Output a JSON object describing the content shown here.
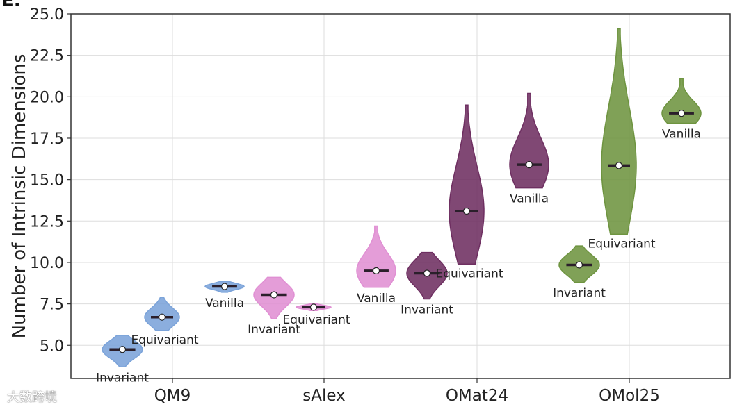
{
  "panel_label": "E.",
  "watermark": "大数跨境",
  "chart_data": {
    "type": "violin",
    "title": "",
    "xlabel": "",
    "ylabel": "Number of Intrinsic Dimensions",
    "ylim": [
      3.0,
      25.0
    ],
    "yticks": [
      "5.0",
      "7.5",
      "10.0",
      "12.5",
      "15.0",
      "17.5",
      "20.0",
      "22.5",
      "25.0"
    ],
    "grid": true,
    "categories": [
      "QM9",
      "sAlex",
      "OMat24",
      "OMol25"
    ],
    "series_colors": {
      "QM9": "#7ba3d9",
      "sAlex": "#e08fd3",
      "OMat24": "#6e2f61",
      "OMol25": "#6e9440"
    },
    "groups": [
      {
        "dataset": "QM9",
        "model": "Invariant",
        "min": 3.7,
        "max": 5.6,
        "median": 4.75
      },
      {
        "dataset": "QM9",
        "model": "Equivariant",
        "min": 5.9,
        "max": 7.9,
        "median": 6.7
      },
      {
        "dataset": "QM9",
        "model": "Vanilla",
        "min": 8.2,
        "max": 8.85,
        "median": 8.55
      },
      {
        "dataset": "sAlex",
        "model": "Invariant",
        "min": 6.6,
        "max": 9.1,
        "median": 8.05
      },
      {
        "dataset": "sAlex",
        "model": "Equivariant",
        "min": 7.1,
        "max": 7.5,
        "median": 7.3
      },
      {
        "dataset": "sAlex",
        "model": "Vanilla",
        "min": 8.5,
        "max": 12.2,
        "median": 9.5
      },
      {
        "dataset": "OMat24",
        "model": "Invariant",
        "min": 7.8,
        "max": 10.6,
        "median": 9.35
      },
      {
        "dataset": "OMat24",
        "model": "Equivariant",
        "min": 9.9,
        "max": 19.5,
        "median": 13.1
      },
      {
        "dataset": "OMat24",
        "model": "Vanilla",
        "min": 14.5,
        "max": 20.2,
        "median": 15.9
      },
      {
        "dataset": "OMol25",
        "model": "Invariant",
        "min": 8.8,
        "max": 11.0,
        "median": 9.85
      },
      {
        "dataset": "OMol25",
        "model": "Equivariant",
        "min": 11.7,
        "max": 24.1,
        "median": 15.85
      },
      {
        "dataset": "OMol25",
        "model": "Vanilla",
        "min": 18.4,
        "max": 21.1,
        "median": 19.0
      }
    ]
  }
}
